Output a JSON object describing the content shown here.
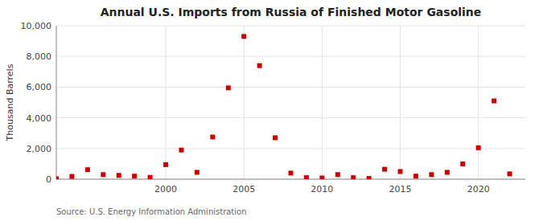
{
  "chart_data": {
    "type": "scatter",
    "title": "Annual U.S. Imports from Russia of Finished Motor Gasoline",
    "ylabel": "Thousand Barrels",
    "annotations": [
      "Source: U.S. Energy Information Administration"
    ],
    "x": [
      1993,
      1994,
      1995,
      1996,
      1997,
      1998,
      1999,
      2000,
      2001,
      2002,
      2003,
      2004,
      2005,
      2006,
      2007,
      2008,
      2009,
      2010,
      2011,
      2012,
      2013,
      2014,
      2015,
      2016,
      2017,
      2018,
      2019,
      2020,
      2021,
      2022
    ],
    "values": [
      30,
      180,
      620,
      300,
      250,
      200,
      120,
      950,
      1900,
      450,
      2750,
      5950,
      9300,
      7400,
      2700,
      400,
      100,
      80,
      300,
      100,
      50,
      650,
      500,
      200,
      300,
      450,
      1000,
      2050,
      5100,
      350
    ],
    "color": "#cc0000",
    "marker": "square",
    "xlim": [
      1993,
      2023
    ],
    "ylim": [
      0,
      10000
    ],
    "xticks": [
      2000,
      2005,
      2010,
      2015,
      2020
    ],
    "yticks": [
      0,
      {
        "value": 2000,
        "label": "2,000"
      },
      {
        "value": 4000,
        "label": "4,000"
      },
      {
        "value": 6000,
        "label": "6,000"
      },
      {
        "value": 8000,
        "label": "8,000"
      },
      {
        "value": 10000,
        "label": "10,000"
      }
    ],
    "grid": true
  }
}
